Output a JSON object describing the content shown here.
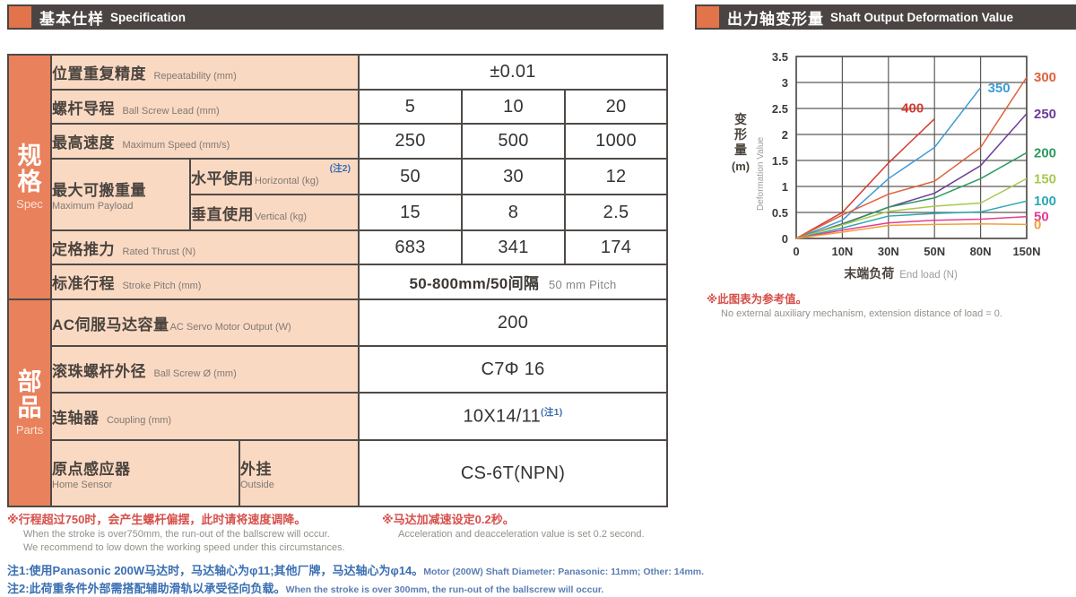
{
  "headers": {
    "left": {
      "zh": "基本仕样",
      "en": "Specification"
    },
    "right": {
      "zh": "出力轴变形量",
      "en": "Shaft Output Deformation Value"
    }
  },
  "spec_table": {
    "section_spec": {
      "zh": "规格",
      "en": "Spec"
    },
    "section_parts": {
      "zh": "部品",
      "en": "Parts"
    },
    "rows": {
      "repeatability": {
        "zh": "位置重复精度",
        "en": "Repeatability (mm)",
        "value": "±0.01"
      },
      "lead": {
        "zh": "螺杆导程",
        "en": "Ball Screw Lead (mm)",
        "values": [
          "5",
          "10",
          "20"
        ]
      },
      "speed": {
        "zh": "最高速度",
        "en": "Maximum Speed (mm/s)",
        "values": [
          "250",
          "500",
          "1000"
        ]
      },
      "payload": {
        "zh": "最大可搬重量",
        "en": "Maximum Payload"
      },
      "horizontal": {
        "zh": "水平使用",
        "en": "Horizontal (kg)",
        "note": "(注2)",
        "values": [
          "50",
          "30",
          "12"
        ]
      },
      "vertical": {
        "zh": "垂直使用",
        "en": "Vertical (kg)",
        "values": [
          "15",
          "8",
          "2.5"
        ]
      },
      "thrust": {
        "zh": "定格推力",
        "en": "Rated Thrust (N)",
        "values": [
          "683",
          "341",
          "174"
        ]
      },
      "stroke": {
        "zh": "标准行程",
        "en": "Stroke Pitch (mm)",
        "value_zh": "50-800mm/50间隔",
        "value_en": "50 mm Pitch"
      },
      "servo": {
        "zh": "AC伺服马达容量",
        "en": "AC Servo Motor Output (W)",
        "value": "200"
      },
      "ballscrew": {
        "zh": "滚珠螺杆外径",
        "en": "Ball Screw Ø (mm)",
        "value": "C7Φ 16"
      },
      "coupling": {
        "zh": "连轴器",
        "en": "Coupling (mm)",
        "value": "10X14/11",
        "note": "(注1)"
      },
      "homesensor": {
        "zh": "原点感应器",
        "en": "Home Sensor",
        "sub_zh": "外挂",
        "sub_en": "Outside",
        "value": "CS-6T(NPN)"
      }
    }
  },
  "chart_data": {
    "type": "line",
    "title_zh": "出力轴变形量",
    "title_en": "Shaft Output Deformation Value",
    "xlabel_zh": "末端负荷",
    "xlabel_en": "End load (N)",
    "ylabel_zh": "变形量",
    "ylabel_unit": "(m)",
    "ylabel_en": "Deformation Value",
    "x_ticks": [
      "0",
      "10N",
      "30N",
      "50N",
      "80N",
      "150N"
    ],
    "y_ticks": [
      0,
      0.5,
      1,
      1.5,
      2,
      2.5,
      3,
      3.5
    ],
    "ylim": [
      0,
      3.5
    ],
    "grid": true,
    "legend_position": "labels-at-line-ends",
    "series": [
      {
        "name": "400",
        "color": "#d53a2f",
        "label_pos": "near-end-left",
        "values": [
          0,
          0.5,
          1.45,
          2.3
        ]
      },
      {
        "name": "350",
        "color": "#3e9bd5",
        "label_pos": "near-end-right",
        "values": [
          0,
          0.35,
          1.15,
          1.75,
          2.9
        ]
      },
      {
        "name": "300",
        "color": "#e0613b",
        "label_pos": "right",
        "values": [
          0,
          0.45,
          0.85,
          1.1,
          1.75,
          3.1
        ]
      },
      {
        "name": "250",
        "color": "#6a3e97",
        "label_pos": "right",
        "values": [
          0,
          0.28,
          0.6,
          0.87,
          1.4,
          2.4
        ]
      },
      {
        "name": "200",
        "color": "#2d9a60",
        "label_pos": "right",
        "values": [
          0,
          0.27,
          0.6,
          0.78,
          1.15,
          1.65
        ]
      },
      {
        "name": "150",
        "color": "#a6c94d",
        "label_pos": "right",
        "values": [
          0,
          0.26,
          0.52,
          0.62,
          0.68,
          1.15
        ]
      },
      {
        "name": "100",
        "color": "#2ba7b4",
        "label_pos": "right",
        "values": [
          0,
          0.2,
          0.43,
          0.48,
          0.51,
          0.72
        ]
      },
      {
        "name": "50",
        "color": "#e73b90",
        "label_pos": "right",
        "values": [
          0,
          0.16,
          0.3,
          0.35,
          0.37,
          0.42
        ]
      },
      {
        "name": "0",
        "color": "#f0a03a",
        "label_pos": "right",
        "values": [
          0,
          0.12,
          0.25,
          0.27,
          0.28,
          0.27
        ]
      }
    ],
    "note_zh": "※此图表为参考值。",
    "note_en": "No external auxiliary mechanism, extension distance of load = 0."
  },
  "footnotes": {
    "stroke_note_zh": "※行程超过750时，会产生螺杆偏摆，此时请将速度调降。",
    "stroke_note_en1": "When the stroke is over750mm, the run-out of the ballscrew will occur.",
    "stroke_note_en2": "We recommend to low down the working speed under this circumstances.",
    "accel_note_zh": "※马达加减速设定0.2秒。",
    "accel_note_en": "Acceleration and deacceleration value is set 0.2 second.",
    "note1_zh": "注1:使用Panasonic 200W马达时，马达轴心为φ11;其他厂牌，马达轴心为φ14。",
    "note1_en": "Motor (200W) Shaft Diameter: Panasonic: 11mm; Other: 14mm.",
    "note2_zh": "注2:此荷重条件外部需搭配辅助滑轨以承受径向负载。",
    "note2_en": "When the stroke is over 300mm, the run-out of the ballscrew will occur."
  }
}
